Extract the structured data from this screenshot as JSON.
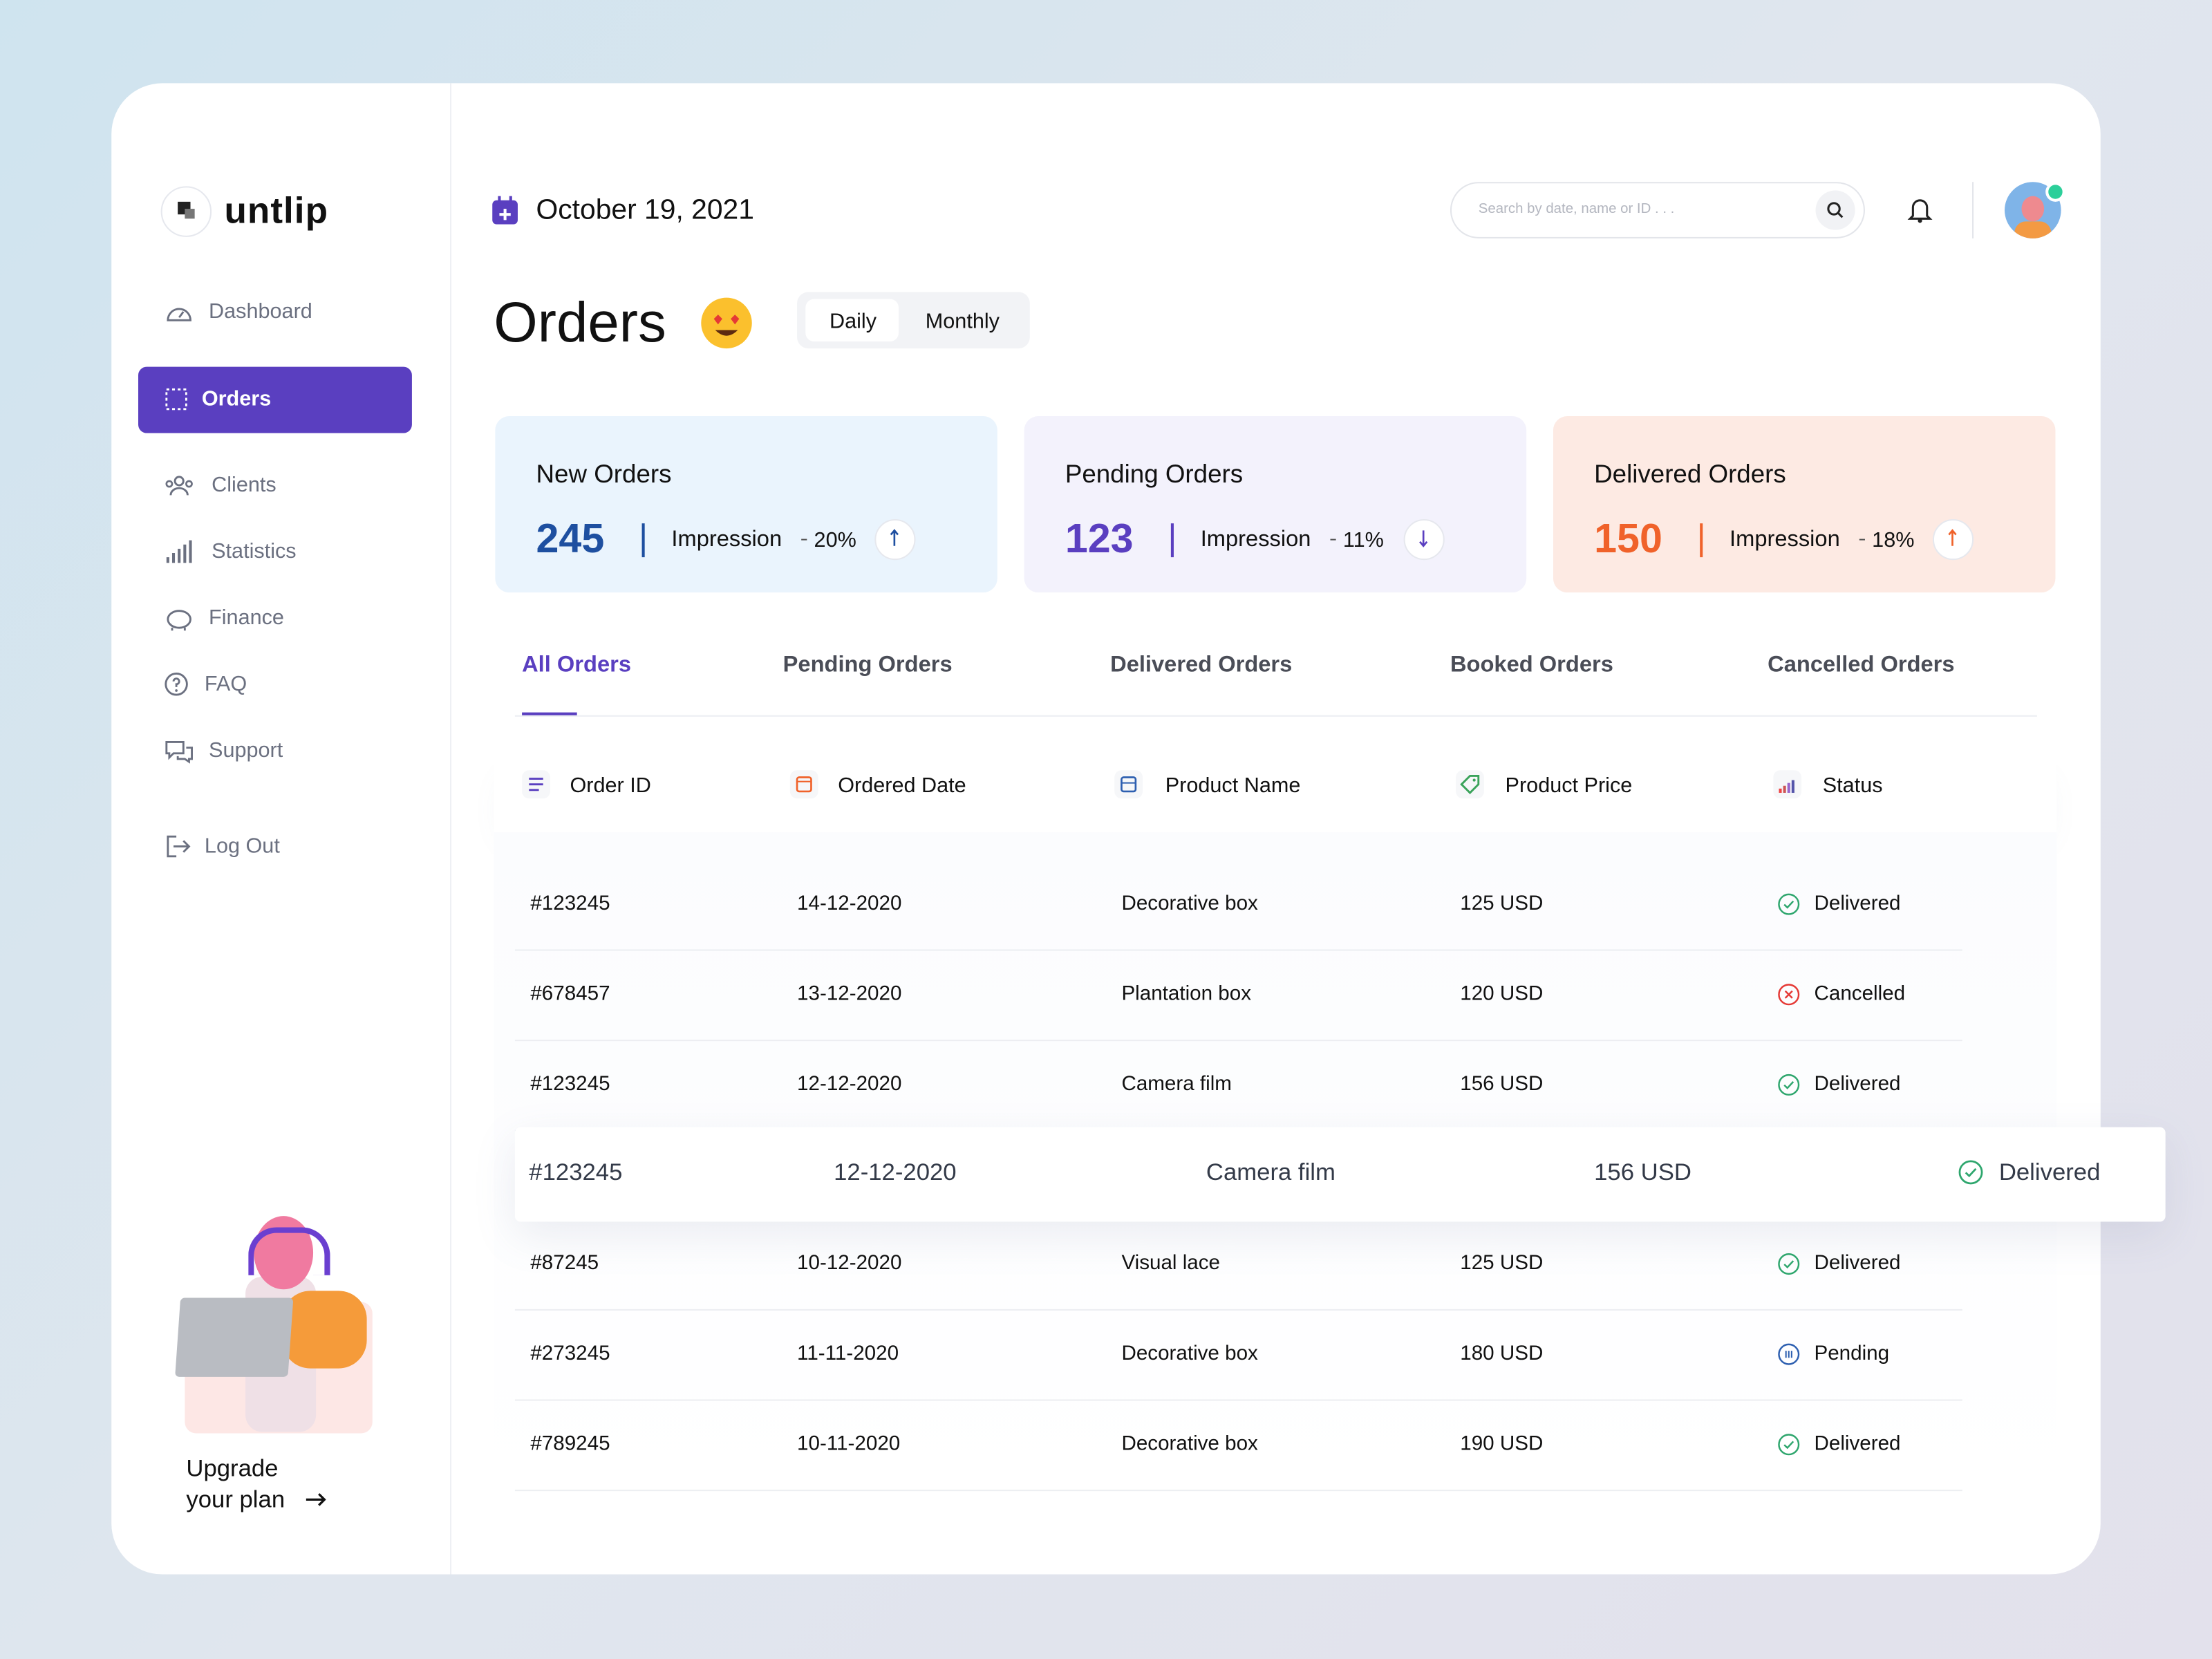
{
  "brand": "untlip",
  "date": "October 19, 2021",
  "search_placeholder": "Search by date, name or ID . . .",
  "nav": [
    "Dashboard",
    "Orders",
    "Clients",
    "Statistics",
    "Finance",
    "FAQ",
    "Support"
  ],
  "logout": "Log Out",
  "upgrade": [
    "Upgrade",
    "your plan"
  ],
  "page_title": "Orders",
  "toggle": [
    "Daily",
    "Monthly"
  ],
  "stats": [
    {
      "title": "New Orders",
      "value": 245,
      "label": "Impression",
      "change": "20%"
    },
    {
      "title": "Pending Orders",
      "value": 123,
      "label": "Impression",
      "change": "11%"
    },
    {
      "title": "Delivered Orders",
      "value": 150,
      "label": "Impression",
      "change": "18%"
    }
  ],
  "tabs": [
    "All Orders",
    "Pending Orders",
    "Delivered Orders",
    "Booked Orders",
    "Cancelled Orders"
  ],
  "table": {
    "columns": [
      "Order ID",
      "Ordered Date",
      "Product Name",
      "Product Price",
      "Status"
    ],
    "rows": [
      [
        "#123245",
        "14-12-2020",
        "Decorative box",
        "125 USD",
        "Delivered"
      ],
      [
        "#678457",
        "13-12-2020",
        "Plantation box",
        "120 USD",
        "Cancelled"
      ],
      [
        "#123245",
        "12-12-2020",
        "Camera film",
        "156 USD",
        "Delivered"
      ],
      [
        "#123245",
        "12-12-2020",
        "Camera film",
        "156 USD",
        "Delivered"
      ],
      [
        "#87245",
        "10-12-2020",
        "Visual lace",
        "125 USD",
        "Delivered"
      ],
      [
        "#273245",
        "11-11-2020",
        "Decorative box",
        "180 USD",
        "Pending"
      ],
      [
        "#789245",
        "10-11-2020",
        "Decorative box",
        "190 USD",
        "Delivered"
      ]
    ]
  }
}
